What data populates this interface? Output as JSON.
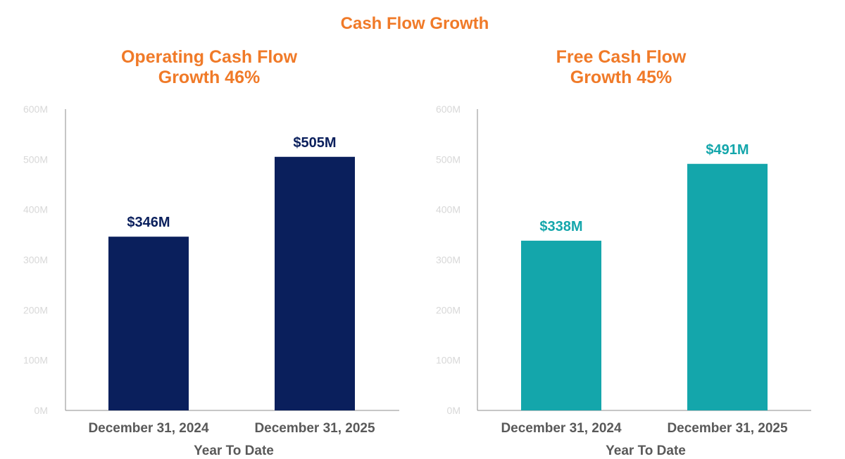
{
  "figure": {
    "title": "Cash Flow Growth",
    "title_color": "#f07a28"
  },
  "chart_data": [
    {
      "type": "bar",
      "title_lines": [
        "Operating Cash Flow",
        "Growth 46%"
      ],
      "title_color": "#f07a28",
      "categories": [
        "December 31, 2024",
        "December 31, 2025"
      ],
      "values": [
        346,
        505
      ],
      "data_labels": [
        "$346M",
        "$505M"
      ],
      "bar_color": "#0a1f5c",
      "label_color": "#0a1f5c",
      "xlabel": "Year To Date",
      "ylabel": "",
      "ylim": [
        0,
        600
      ],
      "yticks": [
        0,
        100,
        200,
        300,
        400,
        500,
        600
      ],
      "ytick_labels": [
        "0M",
        "100M",
        "200M",
        "300M",
        "400M",
        "500M",
        "600M"
      ],
      "grid": false,
      "legend": "none"
    },
    {
      "type": "bar",
      "title_lines": [
        "Free Cash Flow",
        "Growth 45%"
      ],
      "title_color": "#f07a28",
      "categories": [
        "December 31, 2024",
        "December 31, 2025"
      ],
      "values": [
        338,
        491
      ],
      "data_labels": [
        "$338M",
        "$491M"
      ],
      "bar_color": "#14a6ab",
      "label_color": "#14a6ab",
      "xlabel": "Year To Date",
      "ylabel": "",
      "ylim": [
        0,
        600
      ],
      "yticks": [
        0,
        100,
        200,
        300,
        400,
        500,
        600
      ],
      "ytick_labels": [
        "0M",
        "100M",
        "200M",
        "300M",
        "400M",
        "500M",
        "600M"
      ],
      "grid": false,
      "legend": "none"
    }
  ]
}
